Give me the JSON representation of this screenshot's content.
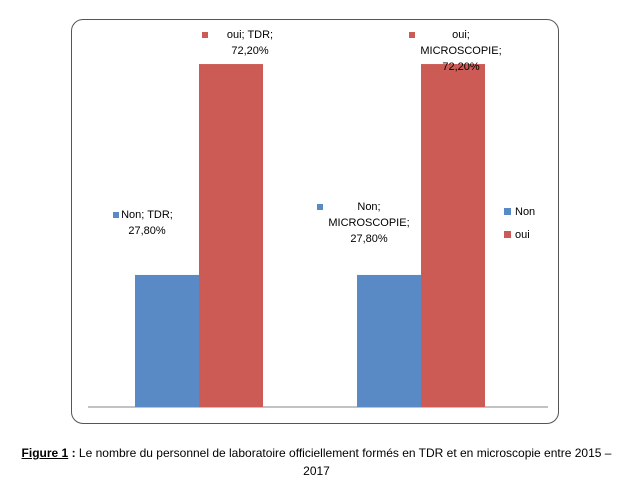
{
  "chart_data": {
    "type": "bar",
    "categories": [
      "TDR",
      "MICROSCOPIE"
    ],
    "series": [
      {
        "name": "Non",
        "values": [
          27.8,
          27.8
        ],
        "color": "#5A8AC6"
      },
      {
        "name": "oui",
        "values": [
          72.2,
          72.2
        ],
        "color": "#CC5A55"
      }
    ],
    "data_labels": [
      [
        [
          "Non; TDR;",
          "27,80%"
        ],
        [
          "Non;",
          "MICROSCOPIE;",
          "27,80%"
        ]
      ],
      [
        [
          "oui; TDR;",
          "72,20%"
        ],
        [
          "oui;",
          "MICROSCOPIE;",
          "72,20%"
        ]
      ]
    ],
    "ylim": [
      0,
      80
    ],
    "grid": false,
    "legend_position": "right",
    "title": "",
    "xlabel": "",
    "ylabel": ""
  },
  "caption": {
    "figure_label": "Figure 1",
    "separator": " :",
    "text_line1": " Le nombre du personnel de laboratoire officiellement formés en TDR et en microscopie entre 2015 –",
    "text_line2": "2017"
  }
}
